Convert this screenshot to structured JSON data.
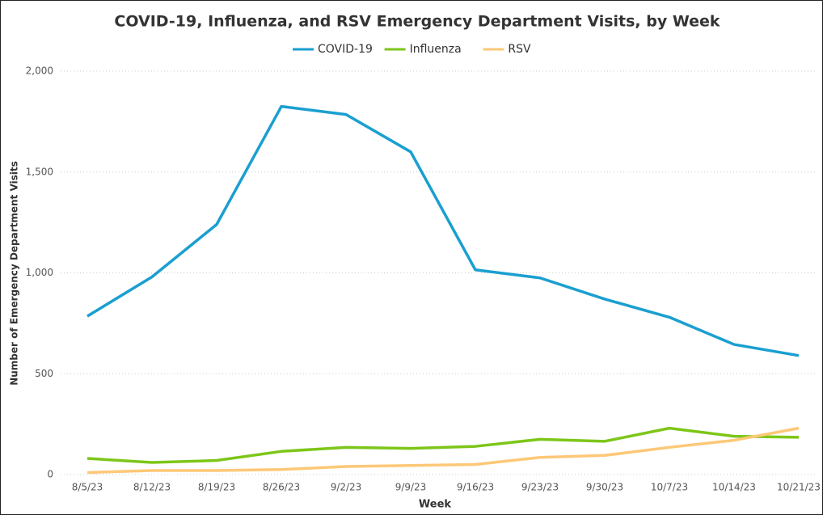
{
  "chart_data": {
    "type": "line",
    "title": "COVID-19, Influenza, and RSV Emergency Department Visits, by Week",
    "x_label": "Week",
    "y_label": "Number of Emergency Department Visits",
    "categories": [
      "8/5/23",
      "8/12/23",
      "8/19/23",
      "8/26/23",
      "9/2/23",
      "9/9/23",
      "9/16/23",
      "9/23/23",
      "9/30/23",
      "10/7/23",
      "10/14/23",
      "10/21/23"
    ],
    "series": [
      {
        "name": "COVID-19",
        "color": "#1a9fd0",
        "values": [
          785,
          980,
          1240,
          1825,
          1785,
          1600,
          1015,
          975,
          870,
          780,
          645,
          590
        ]
      },
      {
        "name": "Influenza",
        "color": "#7dc619",
        "values": [
          80,
          60,
          70,
          115,
          135,
          130,
          140,
          175,
          165,
          230,
          190,
          185
        ]
      },
      {
        "name": "RSV",
        "color": "#fdc877",
        "values": [
          10,
          20,
          20,
          25,
          40,
          45,
          50,
          85,
          95,
          135,
          170,
          230
        ]
      }
    ],
    "ylim": [
      0,
      2000
    ],
    "yticks": [
      0,
      500,
      {
        "value": 1000,
        "label": "1,000"
      },
      {
        "value": 1500,
        "label": "1,500"
      },
      {
        "value": 2000,
        "label": "2,000"
      }
    ],
    "grid": true,
    "legend": "top"
  }
}
